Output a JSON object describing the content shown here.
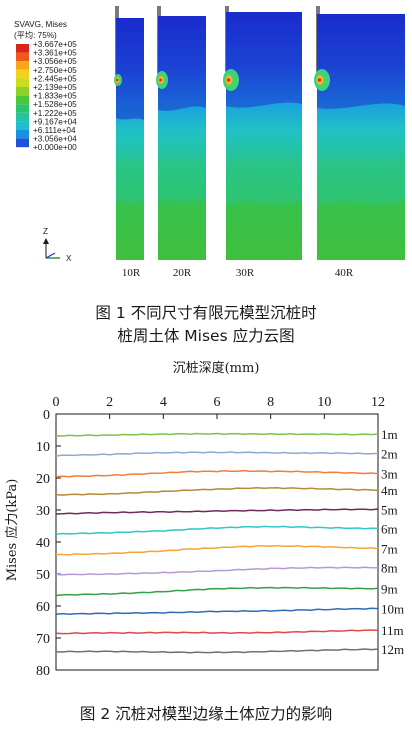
{
  "figure1": {
    "legend": {
      "title_line1": "SVAVG, Mises",
      "title_line2": "(平均: 75%)",
      "levels": [
        {
          "value": "+3.667e+05",
          "color": "#d9241b"
        },
        {
          "value": "+3.361e+05",
          "color": "#ee5a1c"
        },
        {
          "value": "+3.056e+05",
          "color": "#f7a51c"
        },
        {
          "value": "+2.750e+05",
          "color": "#f4d11d"
        },
        {
          "value": "+2.445e+05",
          "color": "#c9dc21"
        },
        {
          "value": "+2.139e+05",
          "color": "#8dd22a"
        },
        {
          "value": "+1.833e+05",
          "color": "#4cc63b"
        },
        {
          "value": "+1.528e+05",
          "color": "#2cc46b"
        },
        {
          "value": "+1.222e+05",
          "color": "#24c3a4"
        },
        {
          "value": "+9.167e+04",
          "color": "#1fbcd2"
        },
        {
          "value": "+6.111e+04",
          "color": "#1a8fe0"
        },
        {
          "value": "+3.056e+04",
          "color": "#1d52d9"
        },
        {
          "value": "+0.000e+00",
          "color": "#1a1fc7"
        }
      ]
    },
    "axes": {
      "z": "Z",
      "x": "X"
    },
    "models": [
      "10R",
      "20R",
      "30R",
      "40R"
    ],
    "caption_line1": "图 1   不同尺寸有限元模型沉桩时",
    "caption_line2": "桩周土体 Mises 应力云图"
  },
  "figure2": {
    "caption": "图 2   沉桩对模型边缘土体应力的影响",
    "chart_data": {
      "type": "line",
      "title": "",
      "xlabel": "沉桩深度(mm)",
      "ylabel": "Mises 应力(kPa)",
      "xlim": [
        0,
        12
      ],
      "ylim": [
        0,
        80
      ],
      "x_ticks": [
        0,
        2,
        4,
        6,
        8,
        10,
        12
      ],
      "y_ticks": [
        0,
        10,
        20,
        30,
        40,
        50,
        60,
        70,
        80
      ],
      "y_inverted": true,
      "x_axis_position": "top",
      "grid": false,
      "x": [
        0,
        1,
        2,
        3,
        4,
        5,
        6,
        7,
        8,
        9,
        10,
        11,
        12
      ],
      "series": [
        {
          "name": "1m",
          "color": "#7dc24a",
          "values": [
            6.8,
            6.7,
            6.6,
            6.4,
            6.3,
            6.2,
            6.2,
            6.2,
            6.3,
            6.3,
            6.3,
            6.4,
            6.3
          ]
        },
        {
          "name": "2m",
          "color": "#8ea9d2",
          "values": [
            13.0,
            12.8,
            12.6,
            12.3,
            12.1,
            12.0,
            12.0,
            12.0,
            12.1,
            12.2,
            12.2,
            12.3,
            12.4
          ]
        },
        {
          "name": "3m",
          "color": "#ef7f3a",
          "values": [
            19.6,
            19.4,
            19.2,
            18.8,
            18.4,
            18.0,
            17.9,
            17.8,
            17.9,
            18.0,
            18.2,
            18.4,
            18.6
          ]
        },
        {
          "name": "4m",
          "color": "#b38b3a",
          "values": [
            25.3,
            25.1,
            25.0,
            24.6,
            24.2,
            23.8,
            23.5,
            23.2,
            23.1,
            23.2,
            23.4,
            23.6,
            23.8
          ]
        },
        {
          "name": "5m",
          "color": "#6b2c5a",
          "values": [
            31.2,
            31.0,
            30.8,
            30.7,
            30.6,
            30.5,
            30.3,
            30.2,
            30.1,
            30.0,
            29.9,
            29.8,
            29.8
          ]
        },
        {
          "name": "6m",
          "color": "#2ec8c6",
          "values": [
            37.5,
            37.3,
            37.1,
            36.8,
            36.5,
            36.0,
            35.6,
            35.3,
            35.2,
            35.3,
            35.5,
            35.7,
            35.8
          ]
        },
        {
          "name": "7m",
          "color": "#f2a535",
          "values": [
            44.0,
            43.8,
            43.6,
            43.2,
            42.8,
            42.2,
            41.8,
            41.4,
            41.2,
            41.3,
            41.5,
            41.8,
            42.0
          ]
        },
        {
          "name": "8m",
          "color": "#b59ad6",
          "values": [
            50.2,
            50.1,
            50.0,
            49.8,
            49.6,
            49.3,
            49.0,
            48.6,
            48.3,
            48.1,
            48.0,
            48.0,
            48.0
          ]
        },
        {
          "name": "9m",
          "color": "#35a04a",
          "values": [
            56.6,
            56.4,
            56.2,
            55.9,
            55.5,
            55.0,
            54.6,
            54.4,
            54.3,
            54.3,
            54.4,
            54.5,
            54.6
          ]
        },
        {
          "name": "10m",
          "color": "#2e6db4",
          "values": [
            62.5,
            62.4,
            62.3,
            62.2,
            62.1,
            61.9,
            61.7,
            61.6,
            61.5,
            61.3,
            61.1,
            60.9,
            60.8
          ]
        },
        {
          "name": "11m",
          "color": "#e04848",
          "values": [
            68.6,
            68.5,
            68.4,
            68.4,
            68.3,
            68.3,
            68.4,
            68.4,
            68.3,
            68.1,
            67.9,
            67.7,
            67.5
          ]
        },
        {
          "name": "12m",
          "color": "#707070",
          "values": [
            74.3,
            74.2,
            74.2,
            74.3,
            74.4,
            74.5,
            74.5,
            74.4,
            74.2,
            74.0,
            73.8,
            73.6,
            73.5
          ]
        }
      ]
    }
  }
}
